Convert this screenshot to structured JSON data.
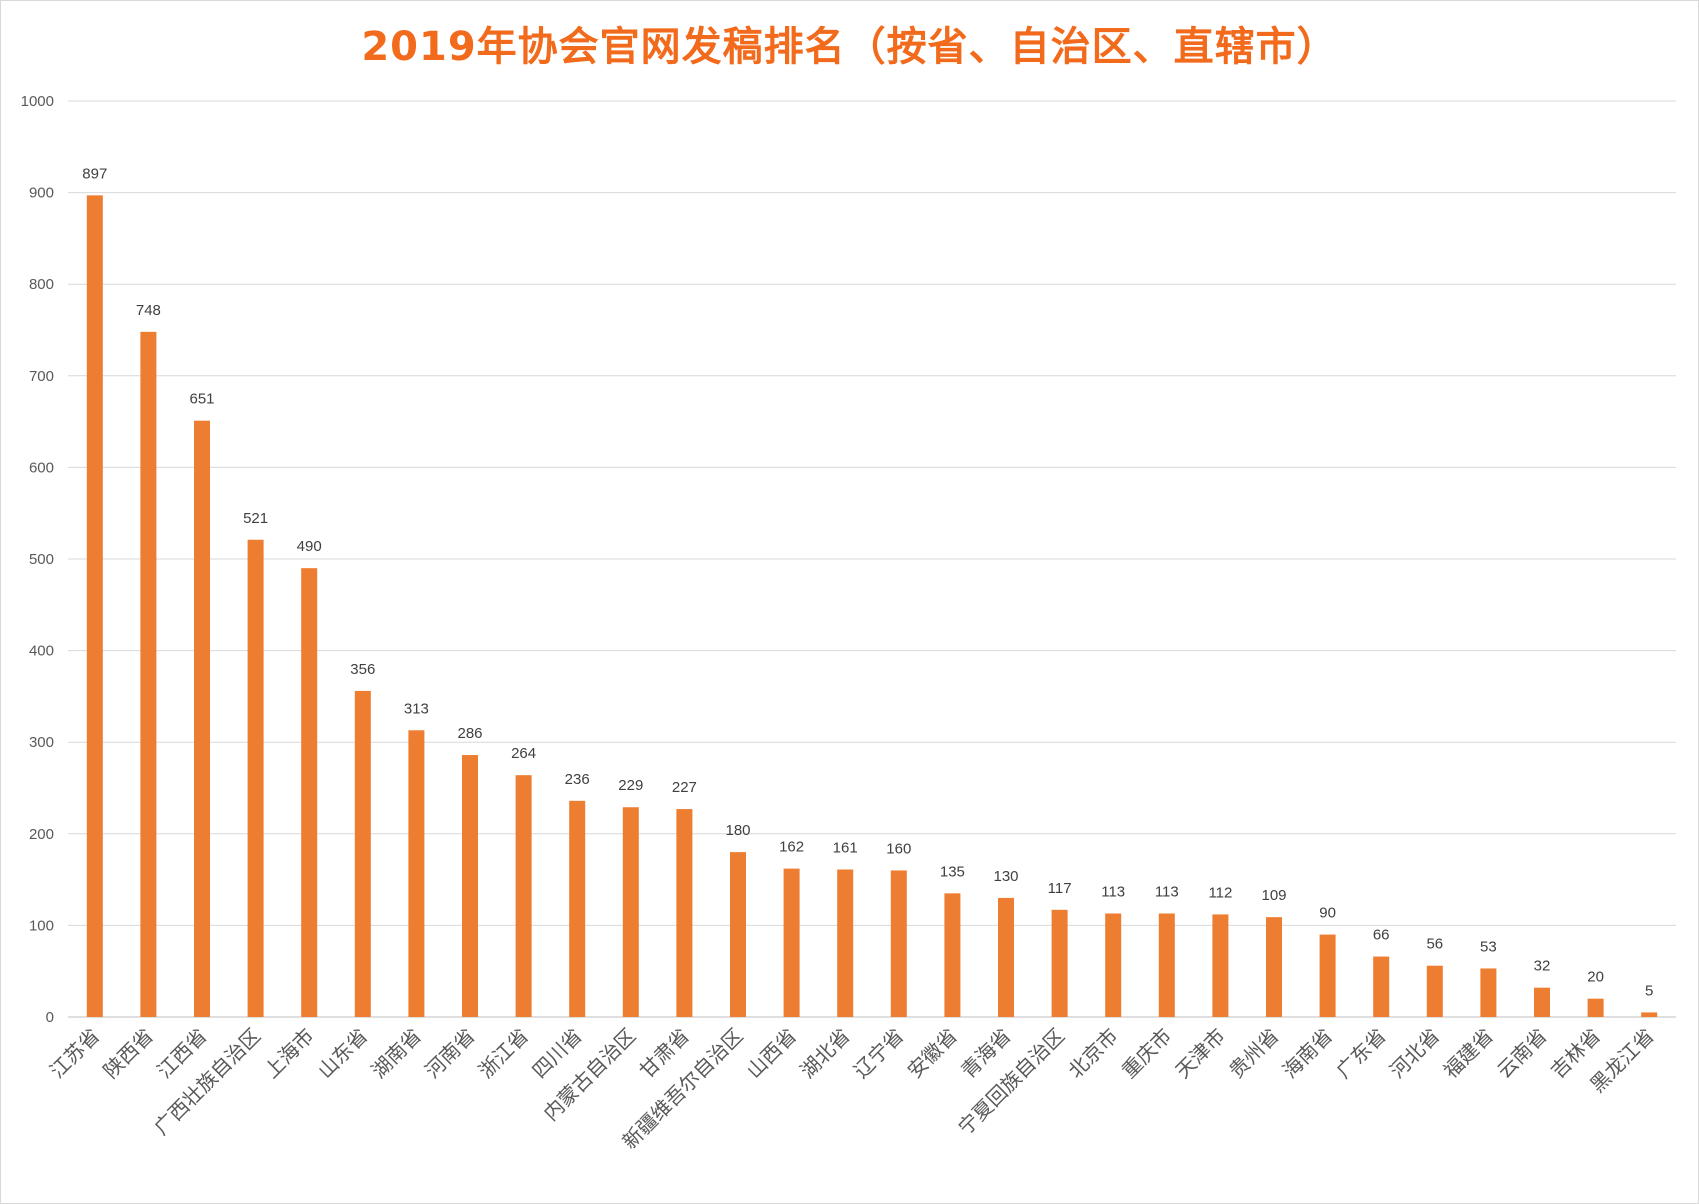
{
  "chart_data": {
    "type": "bar",
    "title": "2019年协会官网发稿排名（按省、自治区、直辖市）",
    "xlabel": "",
    "ylabel": "",
    "ylim": [
      0,
      1000
    ],
    "yticks": [
      "0",
      "100",
      "200",
      "300",
      "400",
      "500",
      "600",
      "700",
      "800",
      "900",
      "1000"
    ],
    "grid": true,
    "legend": "none",
    "categories": [
      "江苏省",
      "陕西省",
      "江西省",
      "广西壮族自治区",
      "上海市",
      "山东省",
      "湖南省",
      "河南省",
      "浙江省",
      "四川省",
      "内蒙古自治区",
      "甘肃省",
      "新疆维吾尔自治区",
      "山西省",
      "湖北省",
      "辽宁省",
      "安徽省",
      "青海省",
      "宁夏回族自治区",
      "北京市",
      "重庆市",
      "天津市",
      "贵州省",
      "海南省",
      "广东省",
      "河北省",
      "福建省",
      "云南省",
      "吉林省",
      "黑龙江省"
    ],
    "values": [
      897,
      748,
      651,
      521,
      490,
      356,
      313,
      286,
      264,
      236,
      229,
      227,
      180,
      162,
      161,
      160,
      135,
      130,
      117,
      113,
      113,
      112,
      109,
      90,
      66,
      56,
      53,
      32,
      20,
      5
    ],
    "colors": {
      "bar": "#ed7d31",
      "title": "#f26a1b",
      "grid": "#d9d9d9",
      "axis": "#bfbfbf"
    }
  }
}
